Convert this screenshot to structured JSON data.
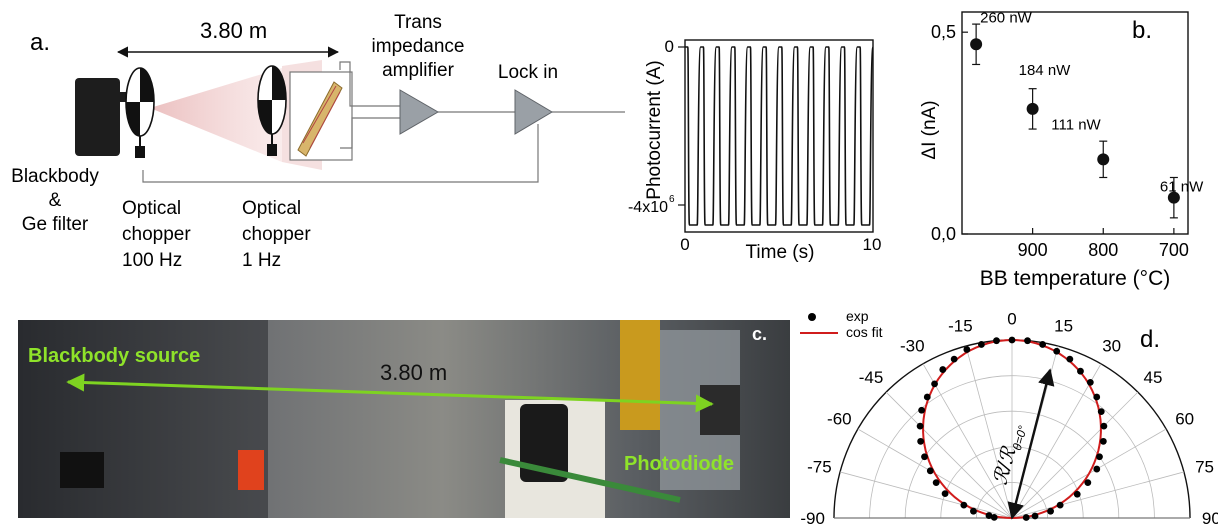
{
  "panel_a": {
    "label": "a.",
    "distance": "3.80 m",
    "blackbody_line1": "Blackbody",
    "blackbody_line2": "&",
    "blackbody_line3": "Ge filter",
    "chopper1_line1": "Optical",
    "chopper1_line2": "chopper",
    "chopper1_line3": "100 Hz",
    "chopper2_line1": "Optical",
    "chopper2_line2": "chopper",
    "chopper2_line3": "1 Hz",
    "tia_line1": "Trans",
    "tia_line2": "impedance",
    "tia_line3": "amplifier",
    "lockin": "Lock in",
    "trace_ylabel": "Photocurrent (A)",
    "trace_xlabel": "Time (s)",
    "trace_ytick_top": "0",
    "trace_ytick_bottom": "-4x10",
    "trace_ytick_bottom_exp": "6",
    "trace_xtick_left": "0",
    "trace_xtick_right": "10"
  },
  "panel_b": {
    "label": "b."
  },
  "panel_c": {
    "label": "c.",
    "source_label": "Blackbody source",
    "distance": "3.80 m",
    "detector_label": "Photodiode"
  },
  "panel_d": {
    "label": "d.",
    "radius_label": "ℛ/ℛ",
    "radius_sub": "θ=0°"
  },
  "chart_data": [
    {
      "type": "line",
      "x": [
        0,
        10
      ],
      "xlabel": "Time (s)",
      "ylabel": "Photocurrent (A)",
      "xlim": [
        0,
        10
      ],
      "ylim": [
        -4e-06,
        0
      ],
      "cycles": 12,
      "waveform": "square"
    },
    {
      "type": "scatter",
      "xlabel": "BB temperature (°C)",
      "ylabel": "ΔI (nA)",
      "x_reversed": true,
      "xlim": [
        1000,
        680
      ],
      "ylim": [
        0,
        0.55
      ],
      "xticks": [
        "900",
        "800",
        "700"
      ],
      "yticks": [
        "0,0",
        "0,5"
      ],
      "x": [
        980,
        900,
        800,
        700
      ],
      "y": [
        0.47,
        0.31,
        0.185,
        0.09
      ],
      "yerr": [
        0.05,
        0.05,
        0.045,
        0.05
      ],
      "point_labels": [
        "260 nW",
        "184 nW",
        "111 nW",
        "61 nW"
      ]
    },
    {
      "type": "scatter",
      "subtype": "polar",
      "theta_ticks": [
        "-90",
        "-75",
        "-60",
        "-45",
        "-30",
        "-15",
        "0",
        "15",
        "30",
        "45",
        "60",
        "75",
        "90"
      ],
      "series": [
        {
          "name": "exp",
          "theta": [
            -88,
            -84,
            -80,
            -75,
            -70,
            -65,
            -60,
            -55,
            -50,
            -45,
            -40,
            -35,
            -30,
            -25,
            -20,
            -15,
            -10,
            -5,
            0,
            5,
            10,
            15,
            20,
            25,
            30,
            35,
            40,
            45,
            50,
            55,
            60,
            65,
            70,
            75,
            80,
            85,
            88
          ],
          "r": [
            0.1,
            0.13,
            0.22,
            0.28,
            0.4,
            0.47,
            0.53,
            0.6,
            0.67,
            0.73,
            0.79,
            0.83,
            0.87,
            0.92,
            0.95,
            0.98,
            0.99,
            1.0,
            1.0,
            1.0,
            0.99,
            0.97,
            0.95,
            0.91,
            0.88,
            0.83,
            0.78,
            0.73,
            0.67,
            0.6,
            0.55,
            0.47,
            0.39,
            0.28,
            0.22,
            0.13,
            0.08
          ]
        },
        {
          "name": "cos fit",
          "function": "cos(theta)"
        }
      ],
      "colors": {
        "exp": "#000000",
        "cos fit": "#d01c1c"
      }
    }
  ]
}
